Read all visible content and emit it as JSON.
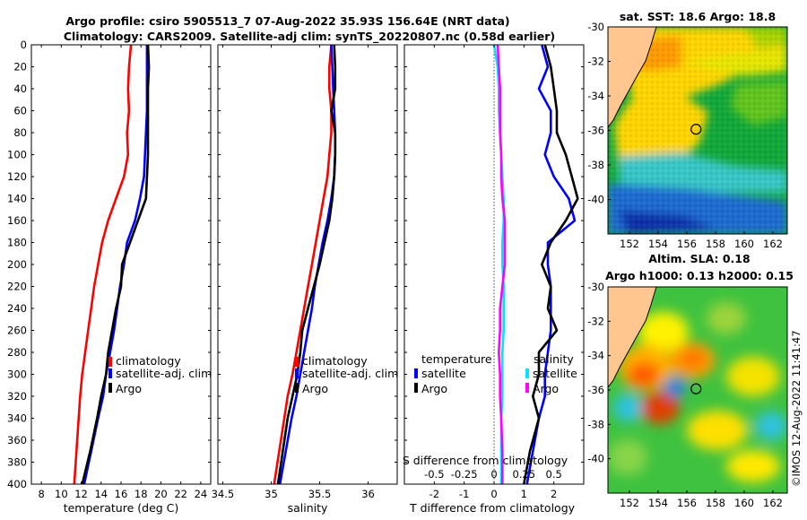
{
  "title": {
    "line1": "Argo profile: csiro 5905513_7 07-Aug-2022 35.93S 156.64E (NRT data)",
    "line2": "Climatology: CARS2009. Satellite-adj clim: synTS_20220807.nc (0.58d earlier)"
  },
  "colors": {
    "climatology": "#ff0000",
    "satellite": "#0000ff",
    "argo": "#000000",
    "s_satellite": "#00e5ff",
    "s_argo": "#ff00ff",
    "land": "#ffc78f"
  },
  "chart_data": [
    {
      "id": "temperature",
      "type": "line",
      "xlabel": "temperature (deg C)",
      "ylabel": "",
      "xlim": [
        7,
        25
      ],
      "ylim": [
        400,
        0
      ],
      "xticks": [
        8,
        10,
        12,
        14,
        16,
        18,
        20,
        22,
        24
      ],
      "yticks": [
        0,
        20,
        40,
        60,
        80,
        100,
        120,
        140,
        160,
        180,
        200,
        220,
        240,
        260,
        280,
        300,
        320,
        340,
        360,
        380,
        400
      ],
      "legend": [
        "climatology",
        "satellite-adj. clim",
        "Argo"
      ],
      "series": [
        {
          "name": "climatology",
          "color": "#ff0000",
          "x": [
            17.0,
            16.8,
            16.7,
            16.8,
            16.6,
            16.7,
            16.3,
            15.5,
            14.7,
            14.1,
            13.7,
            13.3,
            13.0,
            12.7,
            12.4,
            12.1,
            11.9,
            11.6,
            11.3
          ],
          "y": [
            0,
            20,
            40,
            60,
            80,
            100,
            120,
            140,
            160,
            180,
            200,
            220,
            240,
            260,
            280,
            300,
            320,
            360,
            400
          ]
        },
        {
          "name": "satellite-adj. clim",
          "color": "#0000ff",
          "x": [
            18.6,
            18.6,
            18.6,
            18.6,
            18.5,
            18.4,
            18.3,
            17.9,
            17.4,
            16.6,
            16.3,
            15.9,
            15.6,
            15.3,
            14.9,
            14.5,
            14.2,
            13.7,
            13.0,
            12.3
          ],
          "y": [
            0,
            20,
            40,
            60,
            80,
            100,
            120,
            140,
            160,
            180,
            200,
            220,
            240,
            260,
            280,
            300,
            320,
            340,
            370,
            400
          ]
        },
        {
          "name": "Argo",
          "color": "#000000",
          "x": [
            18.7,
            18.8,
            18.7,
            18.7,
            18.7,
            18.7,
            18.6,
            18.5,
            17.7,
            16.9,
            16.1,
            16.0,
            15.5,
            15.1,
            14.7,
            14.5,
            14.0,
            13.6,
            12.9,
            12.1
          ],
          "y": [
            0,
            20,
            40,
            60,
            80,
            100,
            120,
            140,
            160,
            180,
            200,
            220,
            240,
            260,
            280,
            300,
            320,
            340,
            370,
            400
          ]
        }
      ]
    },
    {
      "id": "salinity",
      "type": "line",
      "xlabel": "salinity",
      "ylabel": "",
      "xlim": [
        34.45,
        36.3
      ],
      "ylim": [
        400,
        0
      ],
      "xticks": [
        34.5,
        35,
        35.5,
        36
      ],
      "xticklabels": [
        "34.5",
        "35",
        "35.5",
        "36"
      ],
      "legend": [
        "climatology",
        "satellite-adj. clim",
        "Argo"
      ],
      "series": [
        {
          "name": "climatology",
          "color": "#ff0000",
          "x": [
            35.62,
            35.6,
            35.6,
            35.62,
            35.62,
            35.6,
            35.58,
            35.54,
            35.5,
            35.46,
            35.42,
            35.38,
            35.34,
            35.3,
            35.26,
            35.22,
            35.17,
            35.1,
            35.03
          ],
          "y": [
            0,
            20,
            40,
            60,
            80,
            100,
            120,
            140,
            160,
            180,
            200,
            220,
            240,
            260,
            280,
            300,
            320,
            360,
            400
          ]
        },
        {
          "name": "satellite-adj. clim",
          "color": "#0000ff",
          "x": [
            35.62,
            35.63,
            35.64,
            35.65,
            35.66,
            35.66,
            35.65,
            35.62,
            35.58,
            35.53,
            35.49,
            35.45,
            35.42,
            35.38,
            35.34,
            35.3,
            35.26,
            35.21,
            35.15,
            35.09
          ],
          "y": [
            0,
            20,
            40,
            60,
            80,
            100,
            120,
            140,
            160,
            180,
            200,
            220,
            240,
            260,
            280,
            300,
            320,
            340,
            370,
            400
          ]
        },
        {
          "name": "Argo",
          "color": "#000000",
          "x": [
            35.65,
            35.66,
            35.66,
            35.62,
            35.66,
            35.66,
            35.65,
            35.63,
            35.6,
            35.55,
            35.5,
            35.44,
            35.38,
            35.32,
            35.3,
            35.27,
            35.22,
            35.17,
            35.12,
            35.07
          ],
          "y": [
            0,
            20,
            40,
            60,
            80,
            100,
            120,
            140,
            160,
            180,
            200,
            220,
            240,
            260,
            280,
            300,
            320,
            340,
            370,
            400
          ]
        }
      ]
    },
    {
      "id": "difference",
      "type": "line",
      "xlabel": "T difference from climatology",
      "xlabel_top": "S difference from climatology",
      "ylabel": "",
      "xlim": [
        -3,
        3
      ],
      "ylim": [
        400,
        0
      ],
      "xticks": [
        -2,
        -1,
        0,
        1,
        2
      ],
      "xticklabels": [
        "-2",
        "-1",
        "0",
        "1",
        "2"
      ],
      "xticks_s": [
        -0.5,
        -0.25,
        0,
        0.25,
        0.5
      ],
      "xticklabels_s": [
        "-0.5",
        "-0.25",
        "0",
        "0.25",
        "0.5"
      ],
      "s_scale": 4,
      "legend_headers": [
        "temperature",
        "salinity"
      ],
      "legend": [
        "satellite",
        "Argo",
        "satellite",
        "Argo"
      ],
      "series": [
        {
          "name": "T satellite",
          "color": "#0000ff",
          "x": [
            1.6,
            1.8,
            1.5,
            1.9,
            1.9,
            1.7,
            2.0,
            2.5,
            2.7,
            1.8,
            1.8,
            1.9,
            1.9,
            1.9,
            1.8,
            1.7,
            1.7,
            1.5,
            1.3,
            1.1
          ],
          "y": [
            0,
            20,
            40,
            60,
            80,
            100,
            120,
            140,
            160,
            180,
            200,
            220,
            240,
            260,
            280,
            300,
            320,
            340,
            370,
            400
          ]
        },
        {
          "name": "T Argo",
          "color": "#000000",
          "x": [
            1.7,
            1.9,
            2.0,
            2.1,
            2.1,
            2.4,
            2.6,
            2.8,
            2.4,
            1.9,
            1.6,
            1.9,
            1.8,
            2.1,
            1.5,
            1.5,
            1.3,
            1.5,
            1.2,
            1.0
          ],
          "y": [
            0,
            20,
            40,
            60,
            80,
            100,
            120,
            140,
            160,
            180,
            200,
            220,
            240,
            260,
            280,
            300,
            320,
            340,
            370,
            400
          ]
        },
        {
          "name": "S satellite",
          "color": "#00e5ff",
          "x": [
            0.0,
            0.03,
            0.04,
            0.04,
            0.05,
            0.06,
            0.07,
            0.08,
            0.08,
            0.07,
            0.07,
            0.08,
            0.08,
            0.08,
            0.07,
            0.07,
            0.07,
            0.06,
            0.06,
            0.06
          ],
          "y": [
            0,
            20,
            40,
            60,
            80,
            100,
            120,
            140,
            160,
            180,
            200,
            220,
            240,
            260,
            280,
            300,
            320,
            340,
            370,
            400
          ]
        },
        {
          "name": "S Argo",
          "color": "#ff00ff",
          "x": [
            0.03,
            0.04,
            0.05,
            0.05,
            0.05,
            0.06,
            0.06,
            0.07,
            0.09,
            0.09,
            0.09,
            0.07,
            0.05,
            0.05,
            0.04,
            0.05,
            0.05,
            0.06,
            0.07,
            0.07
          ],
          "y": [
            0,
            20,
            40,
            60,
            80,
            100,
            120,
            140,
            160,
            180,
            200,
            220,
            240,
            260,
            280,
            300,
            320,
            340,
            370,
            400
          ]
        }
      ]
    },
    {
      "id": "sst_map",
      "type": "heatmap",
      "title": "sat. SST: 18.6 Argo: 18.8",
      "xlim": [
        150.5,
        163
      ],
      "ylim": [
        -42,
        -30
      ],
      "xticks": [
        152,
        154,
        156,
        158,
        160,
        162
      ],
      "yticks": [
        -30,
        -32,
        -34,
        -36,
        -38,
        -40
      ],
      "argo_position": {
        "lon": 156.64,
        "lat": -35.93
      }
    },
    {
      "id": "sla_map",
      "type": "heatmap",
      "title": "Altim. SLA: 0.18",
      "subtitle": "Argo h1000: 0.13 h2000: 0.15",
      "xlim": [
        150.5,
        163
      ],
      "ylim": [
        -42,
        -30
      ],
      "xticks": [
        152,
        154,
        156,
        158,
        160,
        162
      ],
      "yticks": [
        -30,
        -32,
        -34,
        -36,
        -38,
        -40
      ],
      "argo_position": {
        "lon": 156.64,
        "lat": -35.93
      }
    }
  ],
  "watermark": "©IMOS 12-Aug-2022 11:41:47"
}
